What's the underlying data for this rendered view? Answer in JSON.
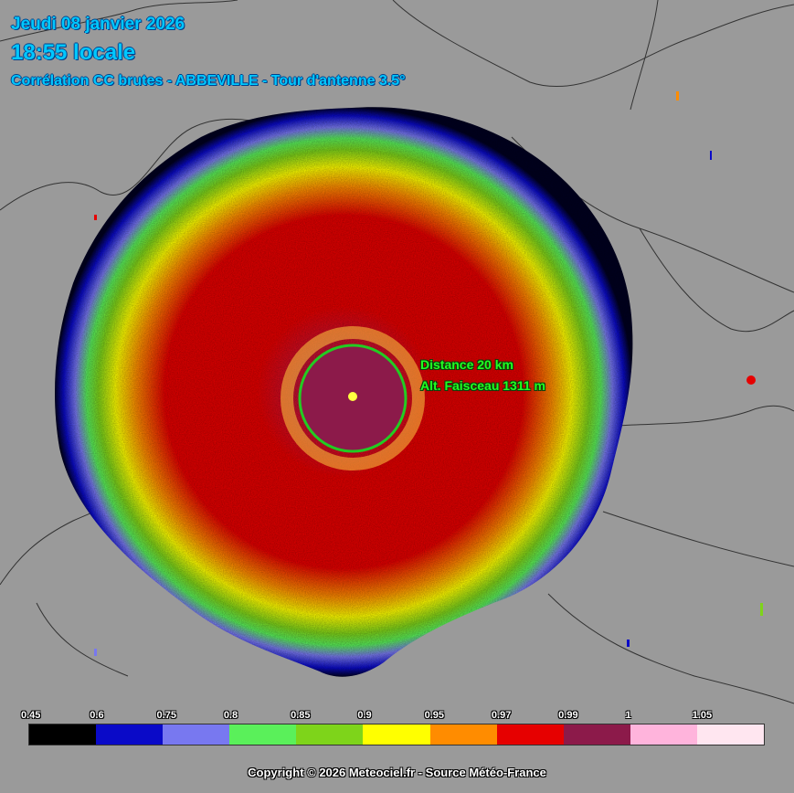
{
  "header": {
    "date": "Jeudi 08 janvier 2026",
    "time": "18:55 locale",
    "product": "Corrélation CC brutes - ABBEVILLE - Tour d'antenne 3.5°"
  },
  "range_ring": {
    "distance_label": "Distance 20 km",
    "altitude_label": "Alt. Faisceau 1311 m"
  },
  "legend": {
    "ticks": [
      "0.45",
      "0.6",
      "0.75",
      "0.8",
      "0.85",
      "0.9",
      "0.95",
      "0.97",
      "0.99",
      "1",
      "1.05"
    ],
    "colors": [
      "#000000",
      "#0a0ac8",
      "#7878f0",
      "#5af05a",
      "#7ed41a",
      "#ffff00",
      "#ff8c00",
      "#e60000",
      "#8c1a4a",
      "#ffb4dc",
      "#ffe6f0"
    ]
  },
  "footer": {
    "copyright": "Copyright © 2026  Meteociel.fr  -  Source Météo-France"
  },
  "colors": {
    "background": "#9a9a9a",
    "header_text": "#00c8ff",
    "ring": "#22cc22",
    "label_text": "#22ff22"
  }
}
